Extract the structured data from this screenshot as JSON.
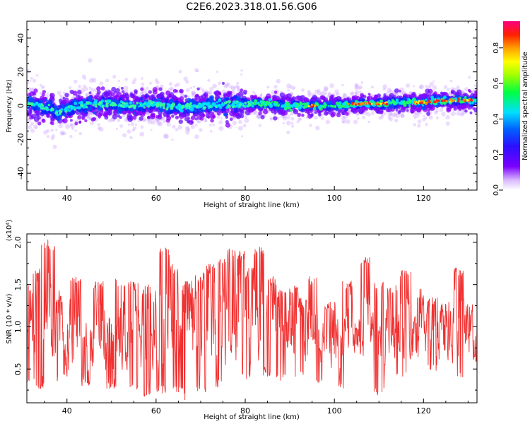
{
  "title": "C2E6.2023.318.01.56.G06",
  "colors": {
    "snr_line": "#f03030",
    "axis": "#000000"
  },
  "chart_data": [
    {
      "type": "heatmap",
      "ylabel": "Frequency (Hz)",
      "xlabel": "Height of straight line (km)",
      "xlim": [
        31,
        132
      ],
      "ylim": [
        -50,
        50
      ],
      "x_ticks": [
        40,
        60,
        80,
        100,
        120
      ],
      "y_ticks": [
        -40,
        -20,
        0,
        20,
        40
      ],
      "colorbar": {
        "label": "Normalized spectral amplitude",
        "range": [
          0,
          0.95
        ],
        "ticks": [
          "0.0",
          "0.2",
          "0.4",
          "0.6",
          "0.8"
        ]
      },
      "ridge_frequency_hz": [
        [
          31,
          1
        ],
        [
          34,
          0
        ],
        [
          37,
          -3
        ],
        [
          38.5,
          -4
        ],
        [
          40,
          -2
        ],
        [
          43,
          0
        ],
        [
          46,
          1
        ],
        [
          50,
          1
        ],
        [
          55,
          0
        ],
        [
          60,
          1
        ],
        [
          65,
          -1
        ],
        [
          70,
          0
        ],
        [
          75,
          1
        ],
        [
          80,
          1
        ],
        [
          85,
          1
        ],
        [
          90,
          0
        ],
        [
          95,
          0
        ],
        [
          100,
          0
        ],
        [
          105,
          1
        ],
        [
          110,
          1
        ],
        [
          115,
          2
        ],
        [
          120,
          2
        ],
        [
          125,
          3
        ],
        [
          130,
          3
        ],
        [
          132,
          3
        ]
      ],
      "peak_amplitude_ranges_km": [
        [
          94,
          96
        ],
        [
          103,
          112
        ],
        [
          118,
          128
        ],
        [
          129,
          131
        ]
      ]
    },
    {
      "type": "line",
      "ylabel": "SNR (10 * v/v)",
      "xlabel": "Height of straight line (km)",
      "y_exponent": "(x10⁴)",
      "xlim": [
        31,
        132
      ],
      "ylim": [
        0.1,
        2.1
      ],
      "x_ticks": [
        40,
        60,
        80,
        100,
        120
      ],
      "y_ticks": [
        "0.5",
        "1.0",
        "1.5",
        "2.0"
      ],
      "series": [
        {
          "color": "#f03030",
          "summary": {
            "mean": 0.92,
            "min": 0.12,
            "max": 2.08,
            "points": 1200
          },
          "peaks": [
            [
              31.5,
              1.5
            ],
            [
              33,
              1.7
            ],
            [
              35,
              2.05
            ],
            [
              36.5,
              2.0
            ],
            [
              38,
              1.4
            ],
            [
              42,
              1.6
            ],
            [
              47,
              1.55
            ],
            [
              52,
              1.6
            ],
            [
              55,
              1.55
            ],
            [
              58,
              1.5
            ],
            [
              62,
              1.95
            ],
            [
              64,
              1.75
            ],
            [
              67,
              1.55
            ],
            [
              70,
              1.65
            ],
            [
              72,
              1.75
            ],
            [
              75,
              1.85
            ],
            [
              77,
              1.95
            ],
            [
              79,
              1.9
            ],
            [
              81,
              1.7
            ],
            [
              83,
              1.95
            ],
            [
              86,
              1.6
            ],
            [
              88,
              1.45
            ],
            [
              91,
              1.5
            ],
            [
              93,
              1.35
            ],
            [
              95,
              1.6
            ],
            [
              99,
              1.3
            ],
            [
              103,
              1.55
            ],
            [
              107,
              1.85
            ],
            [
              110,
              1.55
            ],
            [
              113,
              1.5
            ],
            [
              116,
              1.7
            ],
            [
              119,
              1.45
            ],
            [
              122,
              1.35
            ],
            [
              125,
              1.3
            ],
            [
              128,
              1.7
            ],
            [
              130,
              1.25
            ]
          ],
          "troughs": [
            [
              32,
              0.3
            ],
            [
              34,
              0.25
            ],
            [
              39,
              0.35
            ],
            [
              44,
              0.3
            ],
            [
              50,
              0.25
            ],
            [
              55,
              0.25
            ],
            [
              58,
              0.15
            ],
            [
              61,
              0.2
            ],
            [
              65,
              0.22
            ],
            [
              67,
              0.12
            ],
            [
              70,
              0.22
            ],
            [
              74,
              0.28
            ],
            [
              80,
              0.35
            ],
            [
              85,
              0.4
            ],
            [
              88,
              0.35
            ],
            [
              92,
              0.38
            ],
            [
              97,
              0.3
            ],
            [
              102,
              0.25
            ],
            [
              110,
              0.18
            ],
            [
              115,
              0.4
            ],
            [
              122,
              0.45
            ],
            [
              128,
              0.4
            ],
            [
              132,
              0.55
            ]
          ]
        }
      ]
    }
  ]
}
